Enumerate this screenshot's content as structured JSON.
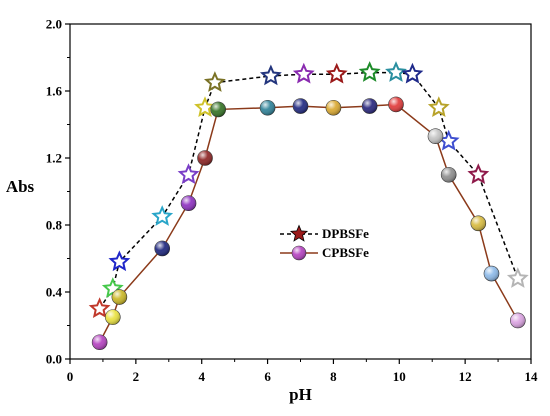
{
  "chart_data": {
    "type": "scatter",
    "xlabel": "pH",
    "ylabel": "Abs",
    "xlim": [
      0,
      14
    ],
    "ylim": [
      0.0,
      2.0
    ],
    "xticks": [
      0,
      2,
      4,
      6,
      8,
      10,
      12,
      14
    ],
    "xtick_labels": [
      "0",
      "2",
      "4",
      "6",
      "8",
      "10",
      "12",
      "14"
    ],
    "yticks": [
      0.0,
      0.4,
      0.8,
      1.2,
      1.6,
      2.0
    ],
    "ytick_labels": [
      "0.0",
      "0.4",
      "0.8",
      "1.2",
      "1.6",
      "2.0"
    ],
    "grid": false,
    "legend_position": "center",
    "series": [
      {
        "name": "DPBSFe",
        "marker": "star",
        "line_style": "dashed",
        "line_color": "#000000",
        "x": [
          0.9,
          1.3,
          1.5,
          2.8,
          3.6,
          4.1,
          4.4,
          6.1,
          7.1,
          8.1,
          9.1,
          9.9,
          10.4,
          11.2,
          11.5,
          12.4,
          13.6
        ],
        "y": [
          0.3,
          0.42,
          0.58,
          0.85,
          1.1,
          1.5,
          1.65,
          1.69,
          1.7,
          1.7,
          1.71,
          1.71,
          1.7,
          1.5,
          1.3,
          1.1,
          0.48
        ],
        "colors": [
          "#c0392b",
          "#46c84b",
          "#2027c9",
          "#2aa6c9",
          "#7a3ec7",
          "#cfc22a",
          "#7a7226",
          "#23357d",
          "#8a2bb0",
          "#9b1a1a",
          "#1e8c2a",
          "#2a8fa0",
          "#1f2a8a",
          "#b8a32a",
          "#3f4fd0",
          "#8f1a4a",
          "#b5b5b5"
        ]
      },
      {
        "name": "CPBSFe",
        "marker": "circle",
        "line_style": "solid",
        "line_color": "#8b3a1a",
        "x": [
          0.9,
          1.3,
          1.5,
          2.8,
          3.6,
          4.1,
          4.5,
          6.0,
          7.0,
          8.0,
          9.1,
          9.9,
          11.1,
          11.5,
          12.4,
          12.8,
          13.6
        ],
        "y": [
          0.1,
          0.25,
          0.37,
          0.66,
          0.93,
          1.2,
          1.49,
          1.5,
          1.51,
          1.5,
          1.51,
          1.52,
          1.33,
          1.1,
          0.81,
          0.51,
          0.23
        ],
        "colors": [
          "#b23dbe",
          "#e9e13a",
          "#c9b51f",
          "#161f7a",
          "#8a2bbf",
          "#8a1e1e",
          "#2f6f1f",
          "#2a7f96",
          "#1a237e",
          "#d9a62a",
          "#23207a",
          "#e03535",
          "#c2c2c2",
          "#8c8c8c",
          "#d6b93a",
          "#8ab8e8",
          "#d9a0e0"
        ]
      }
    ]
  }
}
